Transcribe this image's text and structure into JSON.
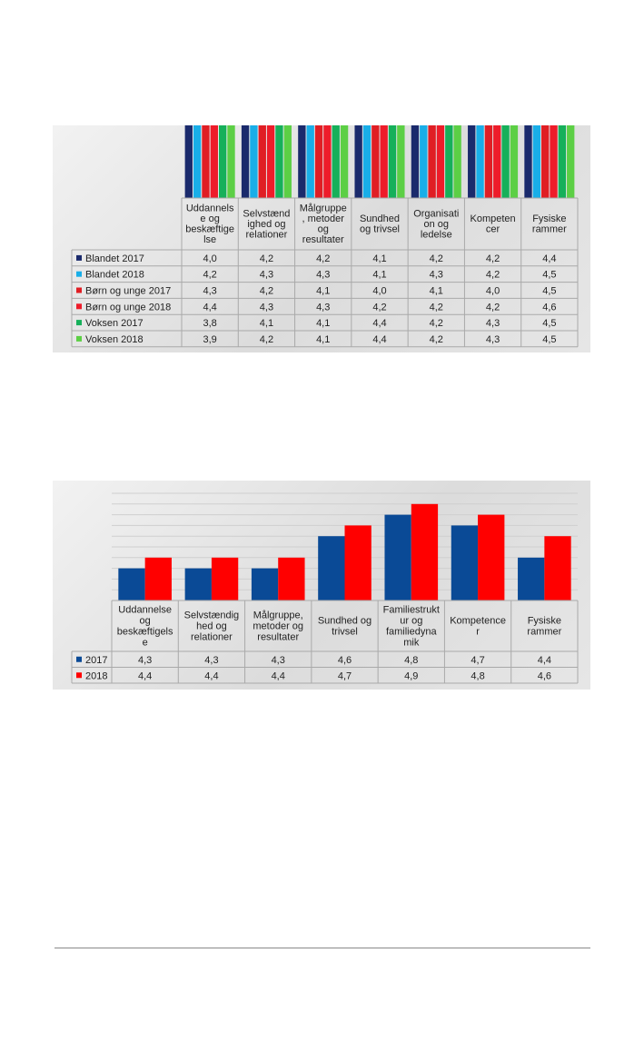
{
  "chart_data": [
    {
      "type": "bar",
      "title": "",
      "xlabel": "",
      "ylabel": "",
      "categories": [
        "Uddannels e og beskæftige lse",
        "Selvstænd ighed og relationer",
        "Målgruppe , metoder og resultater",
        "Sundhed og trivsel",
        "Organisati on og ledelse",
        "Kompeten cer",
        "Fysiske rammer"
      ],
      "categories_lines": [
        [
          "Uddannels",
          "e og",
          "beskæftige",
          "lse"
        ],
        [
          "Selvstænd",
          "ighed og",
          "relationer"
        ],
        [
          "Målgruppe",
          ", metoder",
          "og",
          "resultater"
        ],
        [
          "Sundhed",
          "og trivsel"
        ],
        [
          "Organisati",
          "on og",
          "ledelse"
        ],
        [
          "Kompeten",
          "cer"
        ],
        [
          "Fysiske",
          "rammer"
        ]
      ],
      "ylim": [
        0,
        5
      ],
      "grid": false,
      "legend": "table",
      "series": [
        {
          "name": "Blandet 2017",
          "color": "#1a2a6c",
          "values": [
            4.0,
            4.2,
            4.2,
            4.1,
            4.2,
            4.2,
            4.4
          ],
          "labels": [
            "4,0",
            "4,2",
            "4,2",
            "4,1",
            "4,2",
            "4,2",
            "4,4"
          ]
        },
        {
          "name": "Blandet 2018",
          "color": "#19aee8",
          "values": [
            4.2,
            4.3,
            4.3,
            4.1,
            4.3,
            4.2,
            4.5
          ],
          "labels": [
            "4,2",
            "4,3",
            "4,3",
            "4,1",
            "4,3",
            "4,2",
            "4,5"
          ]
        },
        {
          "name": "Børn og unge 2017",
          "color": "#e01e24",
          "values": [
            4.3,
            4.2,
            4.1,
            4.0,
            4.1,
            4.0,
            4.5
          ],
          "labels": [
            "4,3",
            "4,2",
            "4,1",
            "4,0",
            "4,1",
            "4,0",
            "4,5"
          ]
        },
        {
          "name": "Børn og unge 2018",
          "color": "#ee1c2a",
          "values": [
            4.4,
            4.3,
            4.3,
            4.2,
            4.2,
            4.2,
            4.6
          ],
          "labels": [
            "4,4",
            "4,3",
            "4,3",
            "4,2",
            "4,2",
            "4,2",
            "4,6"
          ]
        },
        {
          "name": "Voksen 2017",
          "color": "#16b05a",
          "values": [
            3.8,
            4.1,
            4.1,
            4.4,
            4.2,
            4.3,
            4.5
          ],
          "labels": [
            "3,8",
            "4,1",
            "4,1",
            "4,4",
            "4,2",
            "4,3",
            "4,5"
          ]
        },
        {
          "name": "Voksen 2018",
          "color": "#5ccf45",
          "values": [
            3.9,
            4.2,
            4.1,
            4.4,
            4.2,
            4.3,
            4.5
          ],
          "labels": [
            "3,9",
            "4,2",
            "4,1",
            "4,4",
            "4,2",
            "4,3",
            "4,5"
          ]
        }
      ]
    },
    {
      "type": "bar",
      "title": "",
      "xlabel": "",
      "ylabel": "",
      "categories": [
        "Uddannelse og beskæftigels e",
        "Selvstændig hed og relationer",
        "Målgruppe, metoder og resultater",
        "Sundhed og trivsel",
        "Familiestrukt ur og familiedyna mik",
        "Kompetence r",
        "Fysiske rammer"
      ],
      "categories_lines": [
        [
          "Uddannelse",
          "og",
          "beskæftigels",
          "e"
        ],
        [
          "Selvstændig",
          "hed og",
          "relationer"
        ],
        [
          "Målgruppe,",
          "metoder og",
          "resultater"
        ],
        [
          "Sundhed og",
          "trivsel"
        ],
        [
          "Familiestrukt",
          "ur og",
          "familiedyna",
          "mik"
        ],
        [
          "Kompetence",
          "r"
        ],
        [
          "Fysiske",
          "rammer"
        ]
      ],
      "ylim": [
        4.0,
        5.0
      ],
      "grid": true,
      "legend": "table",
      "series": [
        {
          "name": "2017",
          "color": "#0a4a96",
          "values": [
            4.3,
            4.3,
            4.3,
            4.6,
            4.8,
            4.7,
            4.4
          ],
          "labels": [
            "4,3",
            "4,3",
            "4,3",
            "4,6",
            "4,8",
            "4,7",
            "4,4"
          ]
        },
        {
          "name": "2018",
          "color": "#ff0000",
          "values": [
            4.4,
            4.4,
            4.4,
            4.7,
            4.9,
            4.8,
            4.6
          ],
          "labels": [
            "4,4",
            "4,4",
            "4,4",
            "4,7",
            "4,9",
            "4,8",
            "4,6"
          ]
        }
      ]
    }
  ]
}
